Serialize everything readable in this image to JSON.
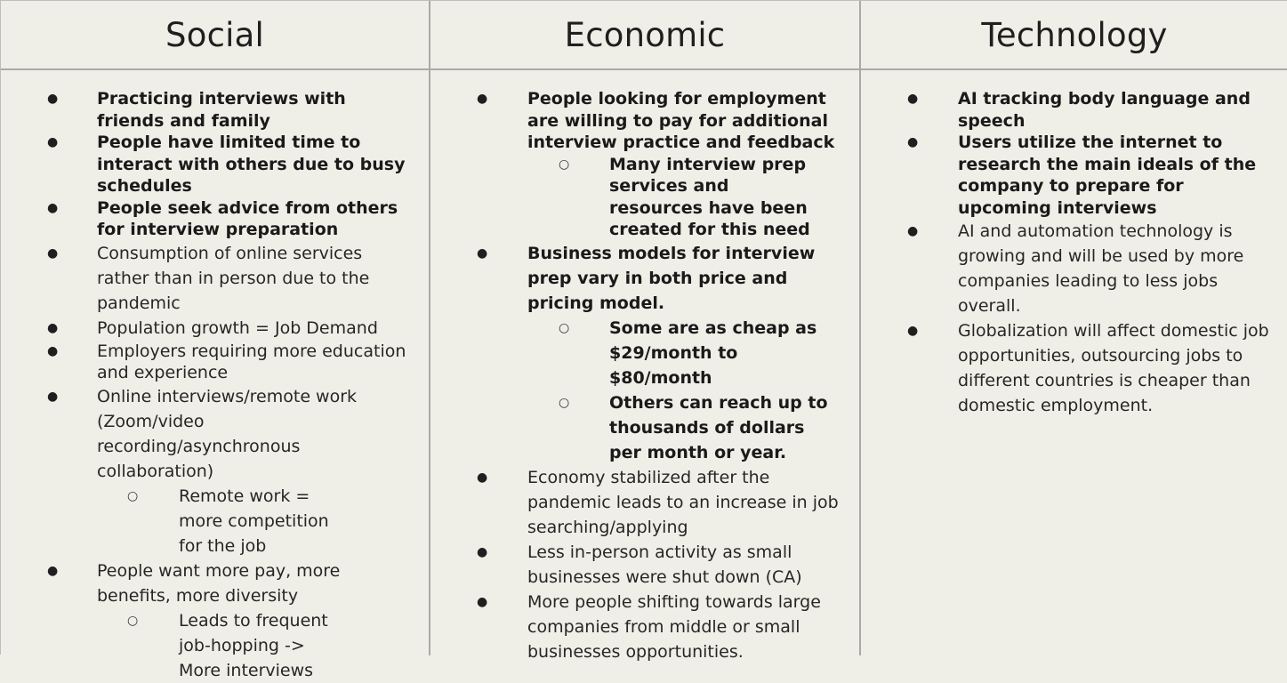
{
  "columns": [
    {
      "title": "Social",
      "items": [
        {
          "text": "Practicing interviews with friends and family",
          "bold": true
        },
        {
          "text": "People have limited time to interact with others due to busy schedules",
          "bold": true
        },
        {
          "text": "People seek advice from others for interview preparation",
          "bold": true
        },
        {
          "text": "Consumption of online services rather than in person due to the pandemic",
          "bold": false
        },
        {
          "text": "Population growth = Job Demand",
          "bold": false
        },
        {
          "text": "Employers requiring more education and experience",
          "bold": false
        },
        {
          "text": "Online interviews/remote work (Zoom/video recording/asynchronous collaboration)",
          "bold": false,
          "subitems": [
            {
              "text": "Remote work = more competition for the job",
              "bold": false
            }
          ]
        },
        {
          "text": "People want more pay, more benefits, more diversity",
          "bold": false,
          "subitems": [
            {
              "text": "Leads to frequent job-hopping -> More interviews",
              "bold": false
            }
          ]
        }
      ]
    },
    {
      "title": "Economic",
      "items": [
        {
          "text": "People looking for employment are willing to pay for additional interview practice and feedback",
          "bold": true,
          "subitems": [
            {
              "text": "Many interview prep services and resources have been created for this need",
              "bold": true
            }
          ]
        },
        {
          "text": "Business models for interview prep vary in both price and pricing model.",
          "bold": true,
          "subitems": [
            {
              "text": "Some are as cheap as $29/month to $80/month",
              "bold": true
            },
            {
              "text": "Others can reach up to thousands of dollars per month or year.",
              "bold": true
            }
          ]
        },
        {
          "text": "Economy stabilized after the pandemic leads to an increase in job searching/applying",
          "bold": false
        },
        {
          "text": "Less in-person activity as small businesses were shut down (CA)",
          "bold": false
        },
        {
          "text": "More people shifting towards large companies from middle or small businesses opportunities.",
          "bold": false
        }
      ]
    },
    {
      "title": "Technology",
      "items": [
        {
          "text": "AI tracking body language and speech",
          "bold": true
        },
        {
          "text": "Users utilize the internet to research the main ideals of the company to prepare for upcoming interviews",
          "bold": true
        },
        {
          "text": "AI and automation technology is growing and will be used by more companies leading to less jobs overall.",
          "bold": false
        },
        {
          "text": "Globalization will affect domestic job opportunities, outsourcing jobs to different countries is cheaper than domestic employment.",
          "bold": false
        }
      ]
    }
  ],
  "bullet_glyph": "●",
  "sub_bullet_glyph": "○"
}
